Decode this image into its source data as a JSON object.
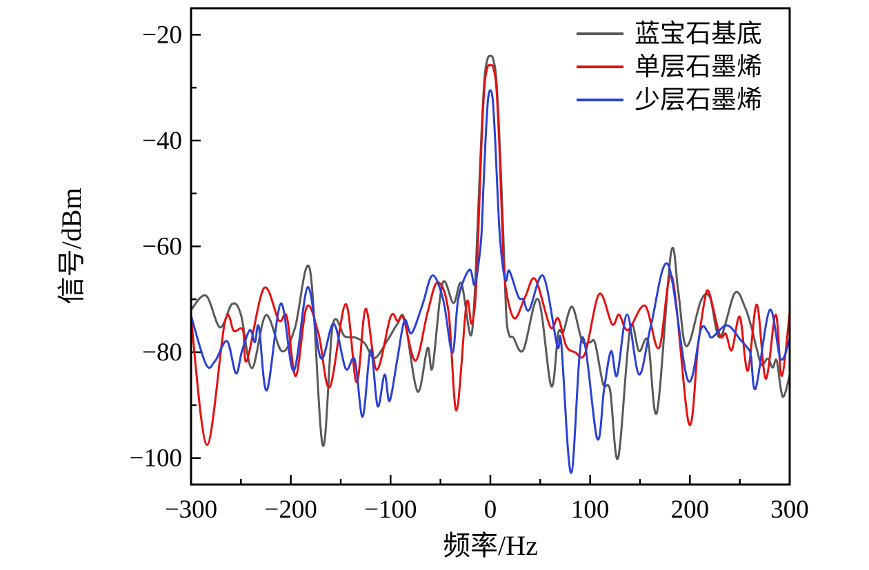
{
  "chart_data": {
    "type": "line",
    "title": "",
    "xlabel": "频率/Hz",
    "ylabel": "信号/dBm",
    "xlim": [
      -300,
      300
    ],
    "ylim": [
      -105,
      -15
    ],
    "grid": false,
    "legend_position": "top-right",
    "frame_color": "#000000",
    "x_ticks": {
      "major": [
        -300,
        -200,
        -100,
        0,
        100,
        200,
        300
      ],
      "labels": [
        "−300",
        "−200",
        "−100",
        "0",
        "100",
        "200",
        "300"
      ],
      "minor": [
        -250,
        -150,
        -50,
        50,
        150,
        250
      ]
    },
    "y_ticks": {
      "major": [
        -20,
        -40,
        -60,
        -80,
        -100
      ],
      "labels": [
        "−20",
        "−40",
        "−60",
        "−80",
        "−100"
      ],
      "minor": [
        -30,
        -50,
        -70,
        -90
      ]
    },
    "series": [
      {
        "name": "蓝宝石基底",
        "color": "#595959",
        "points": [
          [
            -300,
            -72
          ],
          [
            -285,
            -69.3
          ],
          [
            -271,
            -75.3
          ],
          [
            -259,
            -70.9
          ],
          [
            -250,
            -72.9
          ],
          [
            -239,
            -83.0
          ],
          [
            -225,
            -73.0
          ],
          [
            -209,
            -79.8
          ],
          [
            -196,
            -75.5
          ],
          [
            -181,
            -64.3
          ],
          [
            -168,
            -97.6
          ],
          [
            -158,
            -74.9
          ],
          [
            -146,
            -77.0
          ],
          [
            -136,
            -77.2
          ],
          [
            -126,
            -78.3
          ],
          [
            -116,
            -81.1
          ],
          [
            -103,
            -77.7
          ],
          [
            -93,
            -74.6
          ],
          [
            -86,
            -73.8
          ],
          [
            -73,
            -87.4
          ],
          [
            -63,
            -79.2
          ],
          [
            -58,
            -82.9
          ],
          [
            -48,
            -67.0
          ],
          [
            -37,
            -70.7
          ],
          [
            -29,
            -67.0
          ],
          [
            -20,
            -76.8
          ],
          [
            -16,
            -70
          ],
          [
            -13,
            -57
          ],
          [
            -9,
            -39
          ],
          [
            -6,
            -28.5
          ],
          [
            -3,
            -24.7
          ],
          [
            0,
            -24.0
          ],
          [
            3,
            -24.7
          ],
          [
            6,
            -28.5
          ],
          [
            9,
            -39
          ],
          [
            13,
            -58
          ],
          [
            16,
            -73
          ],
          [
            19,
            -76.8
          ],
          [
            23,
            -77.2
          ],
          [
            33,
            -79.6
          ],
          [
            48,
            -70.0
          ],
          [
            61,
            -86.4
          ],
          [
            68,
            -76.4
          ],
          [
            73,
            -76.2
          ],
          [
            82,
            -71.4
          ],
          [
            92,
            -77.9
          ],
          [
            100,
            -78.1
          ],
          [
            105,
            -78.3
          ],
          [
            113,
            -86.0
          ],
          [
            120,
            -87.2
          ],
          [
            128,
            -100.0
          ],
          [
            140,
            -75.6
          ],
          [
            149,
            -79.8
          ],
          [
            158,
            -77.9
          ],
          [
            167,
            -91.3
          ],
          [
            181,
            -61.3
          ],
          [
            188,
            -68.0
          ],
          [
            194,
            -77.7
          ],
          [
            200,
            -77.9
          ],
          [
            211,
            -70.3
          ],
          [
            220,
            -69.6
          ],
          [
            230,
            -77.2
          ],
          [
            245,
            -68.8
          ],
          [
            255,
            -71.4
          ],
          [
            262,
            -75.5
          ],
          [
            267,
            -79.4
          ],
          [
            272,
            -82.4
          ],
          [
            278,
            -81.2
          ],
          [
            283,
            -82.9
          ],
          [
            287,
            -81.6
          ],
          [
            293,
            -88.4
          ],
          [
            300,
            -84.3
          ]
        ]
      },
      {
        "name": "单层石墨烯",
        "color": "#e71010",
        "points": [
          [
            -300,
            -73.5
          ],
          [
            -284,
            -97.5
          ],
          [
            -266,
            -74.2
          ],
          [
            -257,
            -76.0
          ],
          [
            -248,
            -75.8
          ],
          [
            -244,
            -81.6
          ],
          [
            -227,
            -67.9
          ],
          [
            -212,
            -74.0
          ],
          [
            -204,
            -73.3
          ],
          [
            -195,
            -84.5
          ],
          [
            -184,
            -71.4
          ],
          [
            -172,
            -76.7
          ],
          [
            -161,
            -86.6
          ],
          [
            -145,
            -70.9
          ],
          [
            -134,
            -85.7
          ],
          [
            -125,
            -71.8
          ],
          [
            -114,
            -83.3
          ],
          [
            -100,
            -73.3
          ],
          [
            -93,
            -74.1
          ],
          [
            -87,
            -73.6
          ],
          [
            -75,
            -81.6
          ],
          [
            -63,
            -72.5
          ],
          [
            -53,
            -66.8
          ],
          [
            -42,
            -72.2
          ],
          [
            -34,
            -91.0
          ],
          [
            -24,
            -70.9
          ],
          [
            -19,
            -74.6
          ],
          [
            -15,
            -70
          ],
          [
            -12,
            -57
          ],
          [
            -9,
            -41
          ],
          [
            -6,
            -30
          ],
          [
            -3,
            -26.2
          ],
          [
            0,
            -25.8
          ],
          [
            3,
            -26.2
          ],
          [
            6,
            -30
          ],
          [
            9,
            -41
          ],
          [
            12,
            -57
          ],
          [
            15,
            -67.3
          ],
          [
            24,
            -73.6
          ],
          [
            35,
            -69.5
          ],
          [
            45,
            -66.2
          ],
          [
            60,
            -75.2
          ],
          [
            68,
            -73.6
          ],
          [
            76,
            -78.8
          ],
          [
            85,
            -80.0
          ],
          [
            95,
            -80.2
          ],
          [
            109,
            -69.0
          ],
          [
            122,
            -74.7
          ],
          [
            129,
            -72.9
          ],
          [
            138,
            -75.8
          ],
          [
            155,
            -71.2
          ],
          [
            169,
            -79.2
          ],
          [
            182,
            -65.7
          ],
          [
            199,
            -93.5
          ],
          [
            208,
            -79.0
          ],
          [
            214,
            -71.0
          ],
          [
            219,
            -68.6
          ],
          [
            230,
            -76.8
          ],
          [
            236,
            -76.5
          ],
          [
            242,
            -79.6
          ],
          [
            250,
            -73.3
          ],
          [
            258,
            -83.5
          ],
          [
            267,
            -71.0
          ],
          [
            276,
            -85.0
          ],
          [
            286,
            -72.9
          ],
          [
            292,
            -84.5
          ],
          [
            300,
            -72.5
          ]
        ]
      },
      {
        "name": "少层石墨烯",
        "color": "#2a41d6",
        "points": [
          [
            -300,
            -73.1
          ],
          [
            -285,
            -82.3
          ],
          [
            -276,
            -81.7
          ],
          [
            -264,
            -77.9
          ],
          [
            -255,
            -84.0
          ],
          [
            -249,
            -79.8
          ],
          [
            -241,
            -75.8
          ],
          [
            -236,
            -78.1
          ],
          [
            -232,
            -75.2
          ],
          [
            -224,
            -87.2
          ],
          [
            -210,
            -70.8
          ],
          [
            -197,
            -83.5
          ],
          [
            -183,
            -67.7
          ],
          [
            -170,
            -81.1
          ],
          [
            -157,
            -74.6
          ],
          [
            -145,
            -83.1
          ],
          [
            -136,
            -81.4
          ],
          [
            -128,
            -92.2
          ],
          [
            -120,
            -79.6
          ],
          [
            -113,
            -90.2
          ],
          [
            -106,
            -84.2
          ],
          [
            -101,
            -89.2
          ],
          [
            -93,
            -81.0
          ],
          [
            -86,
            -74.0
          ],
          [
            -79,
            -76.4
          ],
          [
            -68,
            -71.0
          ],
          [
            -58,
            -65.5
          ],
          [
            -47,
            -70.3
          ],
          [
            -38,
            -80.1
          ],
          [
            -32,
            -69.7
          ],
          [
            -21,
            -64.4
          ],
          [
            -16,
            -67.3
          ],
          [
            -12,
            -63.5
          ],
          [
            -9,
            -58
          ],
          [
            -7,
            -49
          ],
          [
            -5,
            -40.5
          ],
          [
            -2.5,
            -32.5
          ],
          [
            0,
            -30.5
          ],
          [
            2.5,
            -32.5
          ],
          [
            5,
            -40.5
          ],
          [
            7,
            -49
          ],
          [
            9.5,
            -58
          ],
          [
            13,
            -64.5
          ],
          [
            16,
            -66.5
          ],
          [
            19,
            -64.6
          ],
          [
            28,
            -69.5
          ],
          [
            33,
            -70.0
          ],
          [
            39,
            -72.0
          ],
          [
            53,
            -65.6
          ],
          [
            67,
            -78.8
          ],
          [
            71,
            -78.2
          ],
          [
            81,
            -102.8
          ],
          [
            92,
            -77.2
          ],
          [
            107,
            -96.3
          ],
          [
            114,
            -87.0
          ],
          [
            121,
            -79.8
          ],
          [
            127,
            -84.4
          ],
          [
            137,
            -72.9
          ],
          [
            149,
            -84.2
          ],
          [
            161,
            -74.9
          ],
          [
            178,
            -63.4
          ],
          [
            198,
            -85.3
          ],
          [
            211,
            -75.7
          ],
          [
            218,
            -76.2
          ],
          [
            222,
            -77.2
          ],
          [
            234,
            -75.1
          ],
          [
            241,
            -75.3
          ],
          [
            250,
            -77.5
          ],
          [
            257,
            -79.0
          ],
          [
            261,
            -80.5
          ],
          [
            266,
            -86.8
          ],
          [
            280,
            -72.0
          ],
          [
            291,
            -81.3
          ],
          [
            300,
            -77.5
          ]
        ]
      }
    ]
  }
}
